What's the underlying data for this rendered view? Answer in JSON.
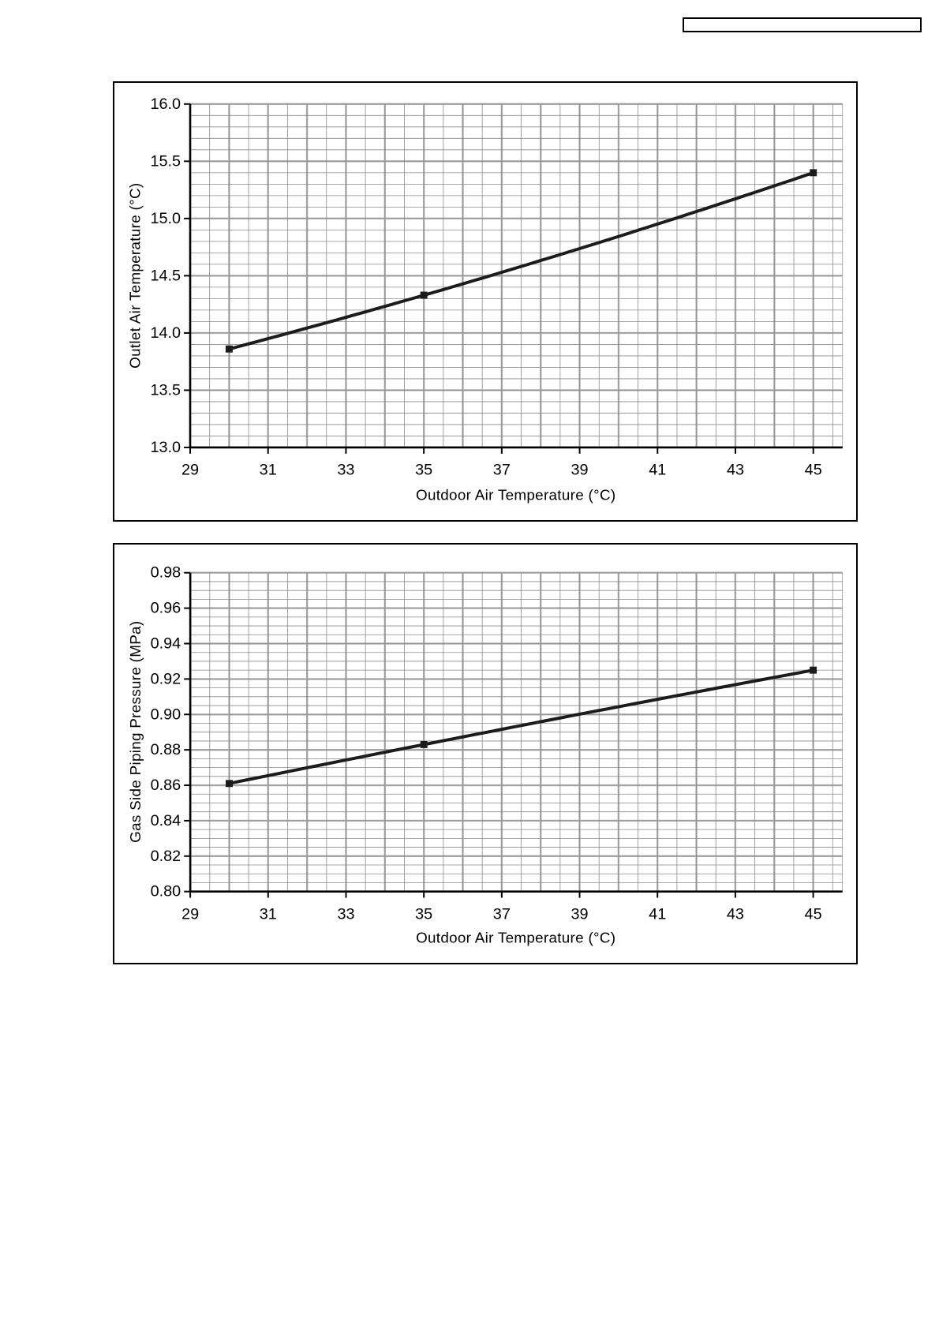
{
  "page": {
    "background_color": "#ffffff",
    "line_color": "#1c1c1c",
    "minor_grid_color": "#8a8a8a",
    "major_grid_color": "#b3b3b3"
  },
  "header_box": {
    "value": ""
  },
  "chart_data": [
    {
      "id": "chart-outlet-air-temp",
      "type": "line",
      "title": "",
      "xlabel": "Outdoor Air Temperature (°C)",
      "ylabel": "Outlet Air Temperature (°C)",
      "xlim": [
        29,
        45.75
      ],
      "ylim": [
        13.0,
        16.0
      ],
      "grid": "on",
      "legend": "none",
      "x_minor_step": 0.5,
      "x_major_step": 1,
      "y_minor_step": 0.1,
      "x_tick_values": [
        29,
        31,
        33,
        35,
        37,
        39,
        41,
        43,
        45
      ],
      "x_ticks": [
        "29",
        "31",
        "33",
        "35",
        "37",
        "39",
        "41",
        "43",
        "45"
      ],
      "y_tick_values": [
        16.0,
        15.5,
        15.0,
        14.5,
        14.0,
        13.5,
        13.0
      ],
      "y_ticks": [
        "16.0",
        "15.5",
        "15.0",
        "14.5",
        "14.0",
        "13.5",
        "13.0"
      ],
      "series": [
        {
          "name": "outlet-air-temperature",
          "x": [
            30,
            35,
            45
          ],
          "y": [
            13.86,
            14.33,
            15.4
          ],
          "marker": "square",
          "color": "#1c1c1c"
        }
      ]
    },
    {
      "id": "chart-gas-side-pressure",
      "type": "line",
      "title": "",
      "xlabel": "Outdoor Air Temperature (°C)",
      "ylabel": "Gas Side Piping Pressure (MPa)",
      "xlim": [
        29,
        45.75
      ],
      "ylim": [
        0.8,
        0.98
      ],
      "grid": "on",
      "legend": "none",
      "x_minor_step": 0.5,
      "x_major_step": 1,
      "y_minor_step": 0.005,
      "x_tick_values": [
        29,
        31,
        33,
        35,
        37,
        39,
        41,
        43,
        45
      ],
      "x_ticks": [
        "29",
        "31",
        "33",
        "35",
        "37",
        "39",
        "41",
        "43",
        "45"
      ],
      "y_tick_values": [
        0.98,
        0.96,
        0.94,
        0.92,
        0.9,
        0.88,
        0.86,
        0.84,
        0.82,
        0.8
      ],
      "y_ticks": [
        "0.98",
        "0.96",
        "0.94",
        "0.92",
        "0.90",
        "0.88",
        "0.86",
        "0.84",
        "0.82",
        "0.80"
      ],
      "series": [
        {
          "name": "gas-side-piping-pressure",
          "x": [
            30,
            35,
            45
          ],
          "y": [
            0.861,
            0.883,
            0.925
          ],
          "marker": "square",
          "color": "#1c1c1c"
        }
      ]
    }
  ]
}
